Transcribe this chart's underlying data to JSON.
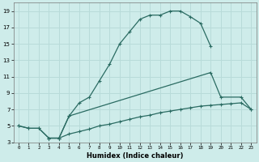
{
  "xlabel": "Humidex (Indice chaleur)",
  "bg_color": "#ceecea",
  "grid_color": "#b8dbd9",
  "line_color": "#2a6b62",
  "xlim": [
    -0.5,
    23.5
  ],
  "ylim": [
    3,
    20
  ],
  "xticks": [
    0,
    1,
    2,
    3,
    4,
    5,
    6,
    7,
    8,
    9,
    10,
    11,
    12,
    13,
    14,
    15,
    16,
    17,
    18,
    19,
    20,
    21,
    22,
    23
  ],
  "yticks": [
    3,
    5,
    7,
    9,
    11,
    13,
    15,
    17,
    19
  ],
  "curve1_x": [
    0,
    1,
    2,
    3,
    4,
    5,
    6,
    7,
    8,
    9,
    10,
    11,
    12,
    13,
    14,
    15,
    16,
    17,
    18,
    19
  ],
  "curve1_y": [
    5,
    4.7,
    4.7,
    3.5,
    3.5,
    6.2,
    7.8,
    8.5,
    10.5,
    12.5,
    15.0,
    16.5,
    18.0,
    18.5,
    18.5,
    19.0,
    19.0,
    18.3,
    17.5,
    14.7
  ],
  "curve2_x": [
    0,
    1,
    2,
    3,
    4,
    5,
    19,
    20,
    22,
    23
  ],
  "curve2_y": [
    5,
    4.7,
    4.7,
    3.5,
    3.5,
    6.2,
    11.5,
    8.5,
    8.5,
    7.0
  ],
  "curve3_x": [
    3,
    4,
    5,
    6,
    7,
    8,
    9,
    10,
    11,
    12,
    13,
    14,
    15,
    16,
    17,
    18,
    19,
    20,
    21,
    22,
    23
  ],
  "curve3_y": [
    3.5,
    3.5,
    4.0,
    4.3,
    4.6,
    5.0,
    5.2,
    5.5,
    5.8,
    6.1,
    6.3,
    6.6,
    6.8,
    7.0,
    7.2,
    7.4,
    7.5,
    7.6,
    7.7,
    7.8,
    7.0
  ]
}
